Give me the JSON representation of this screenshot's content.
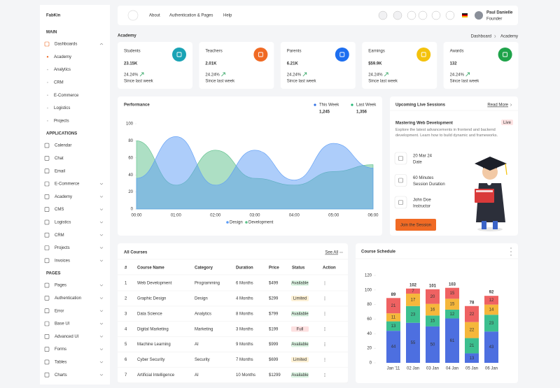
{
  "sidebar": {
    "logo": "FabKin",
    "sections": [
      {
        "title": "MAIN",
        "items": [
          {
            "label": "Dashboards",
            "submenu": true,
            "open": true,
            "active": true,
            "active_child": 0,
            "children": [
              "Academy",
              "Analytics",
              "CRM",
              "E-Commerce",
              "Logistics",
              "Projects"
            ]
          }
        ]
      },
      {
        "title": "APPLICATIONS",
        "items": [
          {
            "label": "Calendar"
          },
          {
            "label": "Chat"
          },
          {
            "label": "Email"
          },
          {
            "label": "E-Commerce",
            "submenu": true
          },
          {
            "label": "Academy",
            "submenu": true
          },
          {
            "label": "CMS",
            "submenu": true
          },
          {
            "label": "Logistics",
            "submenu": true
          },
          {
            "label": "CRM",
            "submenu": true
          },
          {
            "label": "Projects",
            "submenu": true
          },
          {
            "label": "Invoices",
            "submenu": true
          }
        ]
      },
      {
        "title": "PAGES",
        "items": [
          {
            "label": "Pages",
            "submenu": true
          },
          {
            "label": "Authentication",
            "submenu": true
          },
          {
            "label": "Error",
            "submenu": true
          },
          {
            "label": "Base UI",
            "submenu": true
          },
          {
            "label": "Advanced UI",
            "submenu": true
          },
          {
            "label": "Forms",
            "submenu": true
          },
          {
            "label": "Tables",
            "submenu": true
          },
          {
            "label": "Charts",
            "submenu": true
          }
        ]
      }
    ]
  },
  "topbar": {
    "nav": [
      "About",
      "Authentication & Pages",
      "Help"
    ],
    "user": {
      "name": "Paul Danielle",
      "role": "Founder"
    }
  },
  "breadcrumb": {
    "page": "Academy",
    "trail": [
      "Dashboard",
      "Academy"
    ]
  },
  "stats": [
    {
      "label": "Students",
      "value": "23.15K",
      "change": "24.24%",
      "note": "Since last week",
      "color": "#1aa3b5"
    },
    {
      "label": "Teachers",
      "value": "2.01K",
      "change": "24.24%",
      "note": "Since last week",
      "color": "#f06a24"
    },
    {
      "label": "Parents",
      "value": "6.21K",
      "change": "24.24%",
      "note": "Since last week",
      "color": "#1e6ff0"
    },
    {
      "label": "Earnings",
      "value": "$59.9K",
      "change": "24.24%",
      "note": "Since last week",
      "color": "#f4c20d"
    },
    {
      "label": "Awards",
      "value": "132",
      "change": "24.24%",
      "note": "Since last week",
      "color": "#1fa34a"
    }
  ],
  "chart_data": [
    {
      "type": "area",
      "title": "Performance",
      "summary": [
        {
          "label": "This Week",
          "value": "1,245",
          "color": "#2f6fe4"
        },
        {
          "label": "Last Week",
          "value": "1,356",
          "color": "#22b573"
        }
      ],
      "categories": [
        "00:00",
        "01:00",
        "02:00",
        "03:00",
        "04:00",
        "05:00",
        "06:00"
      ],
      "series": [
        {
          "name": "Design",
          "color": "#5b9cf5",
          "values": [
            36,
            85,
            28,
            69,
            34,
            77,
            48
          ]
        },
        {
          "name": "Development",
          "color": "#5cc08a",
          "values": [
            80,
            28,
            69,
            36,
            28,
            44,
            52
          ]
        }
      ],
      "ylim": [
        0,
        100
      ],
      "yticks": [
        0,
        20,
        40,
        60,
        80,
        100
      ],
      "legend": "bottom"
    },
    {
      "type": "stacked_bar",
      "title": "Course Schedule",
      "categories": [
        "Jan '11",
        "02 Jan",
        "03 Jan",
        "04 Jan",
        "05 Jan",
        "06 Jan"
      ],
      "series": [
        {
          "color": "#4d6fe0",
          "values": [
            44,
            55,
            50,
            61,
            13,
            43
          ]
        },
        {
          "color": "#3cbf8f",
          "values": [
            13,
            23,
            15,
            12,
            21,
            23
          ]
        },
        {
          "color": "#f5b73b",
          "values": [
            11,
            17,
            16,
            15,
            22,
            14
          ]
        },
        {
          "color": "#ef6262",
          "values": [
            21,
            7,
            20,
            15,
            22,
            12
          ]
        }
      ],
      "totals": [
        89,
        102,
        101,
        103,
        78,
        92
      ],
      "ylim": [
        0,
        120
      ],
      "yticks": [
        0,
        20,
        40,
        60,
        80,
        100,
        120
      ]
    }
  ],
  "live_session": {
    "title": "Upcoming Live Sessions",
    "link": "Read More",
    "course": "Mastering Web Development",
    "badge": "Live",
    "description": "Explore the latest advancements in frontend and backend development. Learn how to build dynamic and frameworks.",
    "details": [
      {
        "value": "20 Mar 24",
        "label": "Date"
      },
      {
        "value": "60 Minutes",
        "label": "Session Duration"
      },
      {
        "value": "John Doe",
        "label": "Instructor"
      }
    ],
    "button": "Join the Session"
  },
  "courses": {
    "title": "All Courses",
    "link": "See All",
    "columns": [
      "#",
      "Course Name",
      "Category",
      "Duration",
      "Price",
      "Status",
      "Action"
    ],
    "rows": [
      {
        "cells": [
          "1",
          "Web Development",
          "Programming",
          "6 Months",
          "$499",
          "Available"
        ],
        "tone": "green"
      },
      {
        "cells": [
          "2",
          "Graphic Design",
          "Design",
          "4 Months",
          "$299",
          "Limited"
        ],
        "tone": "yellow"
      },
      {
        "cells": [
          "3",
          "Data Science",
          "Analytics",
          "8 Months",
          "$799",
          "Available"
        ],
        "tone": "green"
      },
      {
        "cells": [
          "4",
          "Digital Marketing",
          "Marketing",
          "3 Months",
          "$199",
          "Full"
        ],
        "tone": "red"
      },
      {
        "cells": [
          "5",
          "Machine Learning",
          "AI",
          "9 Months",
          "$999",
          "Available"
        ],
        "tone": "green"
      },
      {
        "cells": [
          "6",
          "Cyber Security",
          "Security",
          "7 Months",
          "$699",
          "Limited"
        ],
        "tone": "yellow"
      },
      {
        "cells": [
          "7",
          "Artificial Intelligence",
          "AI",
          "10 Months",
          "$1299",
          "Available"
        ],
        "tone": "green"
      }
    ]
  }
}
